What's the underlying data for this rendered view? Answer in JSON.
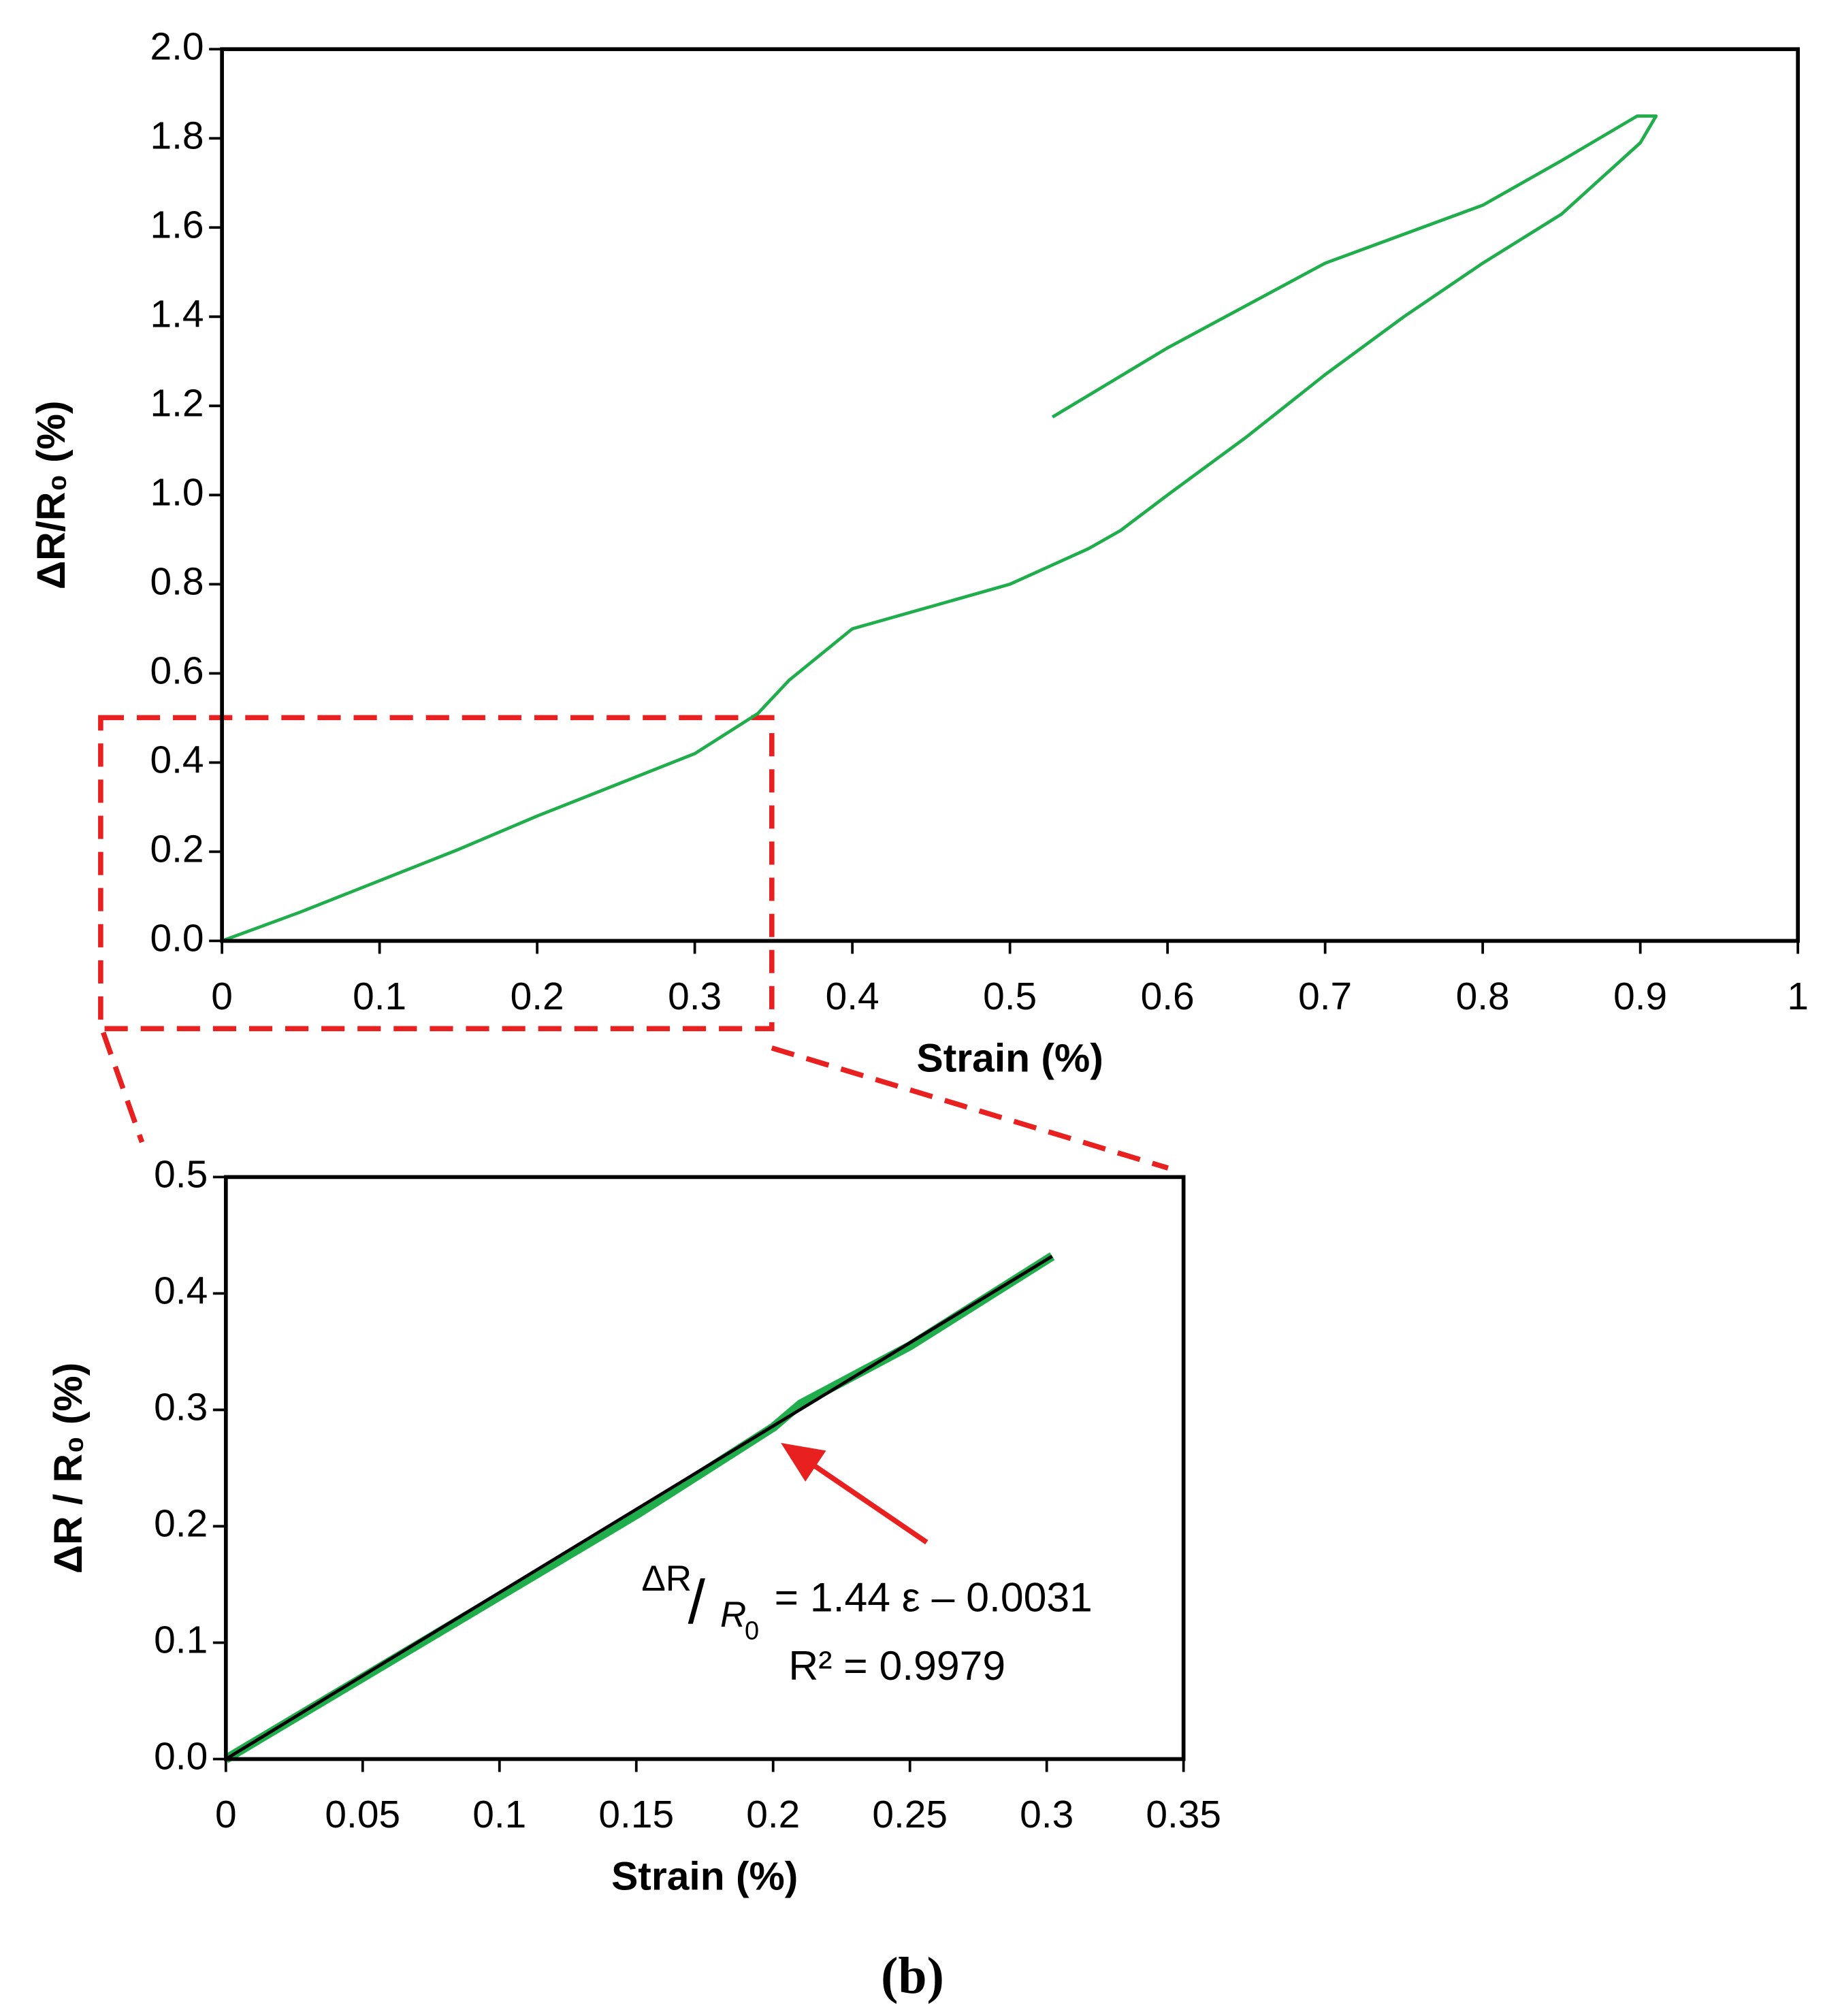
{
  "chart_data": [
    {
      "type": "line",
      "xlabel": "Strain (%)",
      "ylabel": "ΔR/R₀ (%)",
      "xlim": [
        0,
        1
      ],
      "ylim": [
        0,
        2
      ],
      "xticks": [
        0,
        0.1,
        0.2,
        0.3,
        0.4,
        0.5,
        0.6,
        0.7,
        0.8,
        0.9,
        1
      ],
      "yticks": [
        {
          "value": 0,
          "label": "0.0"
        },
        0.2,
        0.4,
        0.6,
        0.8,
        {
          "value": 1,
          "label": "1.0"
        },
        1.2,
        1.4,
        1.6,
        1.8,
        {
          "value": 2,
          "label": "2.0"
        }
      ],
      "series": [
        {
          "color": "#1fae4b",
          "x": [
            0,
            0.05,
            0.1,
            0.15,
            0.2,
            0.25,
            0.3,
            0.34,
            0.36,
            0.4,
            0.45,
            0.5,
            0.55,
            0.57,
            0.6,
            0.65,
            0.7,
            0.75,
            0.8,
            0.85,
            0.9,
            0.91,
            0.898,
            0.85,
            0.8,
            0.7,
            0.6,
            0.527
          ],
          "y": [
            0,
            0.065,
            0.135,
            0.205,
            0.28,
            0.35,
            0.42,
            0.51,
            0.585,
            0.7,
            0.75,
            0.8,
            0.88,
            0.92,
            1.0,
            1.13,
            1.27,
            1.4,
            1.52,
            1.63,
            1.79,
            1.85,
            1.85,
            1.75,
            1.65,
            1.52,
            1.33,
            1.175
          ]
        }
      ]
    },
    {
      "type": "line",
      "xlabel": "Strain (%)",
      "ylabel": "ΔR / R₀ (%)",
      "xlim": [
        0,
        0.35
      ],
      "ylim": [
        0,
        0.5
      ],
      "xticks": [
        0,
        0.05,
        0.1,
        0.15,
        0.2,
        0.25,
        0.3,
        0.35
      ],
      "yticks": [
        {
          "value": 0,
          "label": "0.0"
        },
        0.1,
        0.2,
        0.3,
        0.4,
        0.5
      ],
      "series": [
        {
          "color": "#1fae4b",
          "width": 7,
          "x": [
            0,
            0.05,
            0.1,
            0.15,
            0.2,
            0.21,
            0.25,
            0.302
          ],
          "y": [
            0,
            0.07,
            0.14,
            0.21,
            0.285,
            0.305,
            0.355,
            0.432
          ]
        },
        {
          "color": "#000000",
          "width": 2.5,
          "x": [
            0,
            0.302
          ],
          "y": [
            0,
            0.432
          ]
        }
      ],
      "annotation": {
        "numerator": "ΔR",
        "slash": "/",
        "denominator": "R",
        "subscript": "0",
        "equation": "= 1.44 ε – 0.0031",
        "r_squared": "R² = 0.9979"
      }
    }
  ],
  "caption": "(b)"
}
